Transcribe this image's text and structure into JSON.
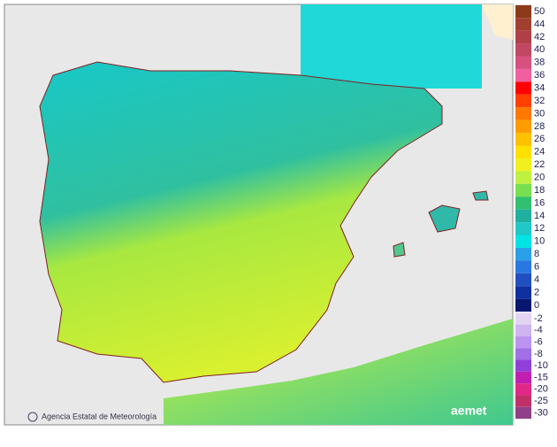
{
  "footer": {
    "agency": "Agencia Estatal de Meteorología",
    "logo": "aemet"
  },
  "legend": {
    "upper": [
      {
        "value": 50,
        "color": "#8b3a1a"
      },
      {
        "value": 44,
        "color": "#a04030"
      },
      {
        "value": 42,
        "color": "#b04048"
      },
      {
        "value": 40,
        "color": "#c04860"
      },
      {
        "value": 38,
        "color": "#d85080"
      },
      {
        "value": 36,
        "color": "#f060a0"
      },
      {
        "value": 34,
        "color": "#ff0000"
      },
      {
        "value": 32,
        "color": "#ff4000"
      },
      {
        "value": 30,
        "color": "#ff7800"
      },
      {
        "value": 28,
        "color": "#ff9c00"
      },
      {
        "value": 26,
        "color": "#ffc000"
      },
      {
        "value": 24,
        "color": "#ffe000"
      },
      {
        "value": 22,
        "color": "#f0f020"
      },
      {
        "value": 20,
        "color": "#c0f040"
      },
      {
        "value": 18,
        "color": "#78e050"
      },
      {
        "value": 16,
        "color": "#30c070"
      },
      {
        "value": 14,
        "color": "#20b0a0"
      },
      {
        "value": 12,
        "color": "#20c8c8"
      },
      {
        "value": 10,
        "color": "#00e4e4"
      },
      {
        "value": 8,
        "color": "#2aa0e8"
      },
      {
        "value": 6,
        "color": "#2878e0"
      },
      {
        "value": 4,
        "color": "#2050c0"
      },
      {
        "value": 2,
        "color": "#1030a0"
      },
      {
        "value": 0,
        "color": "#081870"
      }
    ],
    "lower": [
      {
        "value": -2,
        "color": "#e4d4f4"
      },
      {
        "value": -4,
        "color": "#d0b4f0"
      },
      {
        "value": -6,
        "color": "#bc94f0"
      },
      {
        "value": -8,
        "color": "#a070e4"
      },
      {
        "value": -10,
        "color": "#9040d8"
      },
      {
        "value": -15,
        "color": "#c020b0"
      },
      {
        "value": -20,
        "color": "#e02888"
      },
      {
        "value": -25,
        "color": "#c03068"
      },
      {
        "value": -30,
        "color": "#904088"
      }
    ]
  }
}
